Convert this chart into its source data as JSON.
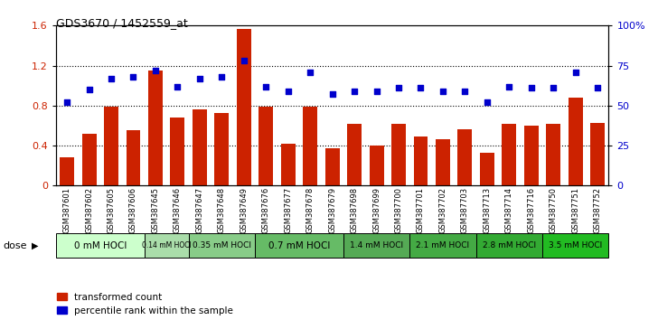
{
  "title": "GDS3670 / 1452559_at",
  "samples": [
    "GSM387601",
    "GSM387602",
    "GSM387605",
    "GSM387606",
    "GSM387645",
    "GSM387646",
    "GSM387647",
    "GSM387648",
    "GSM387649",
    "GSM387676",
    "GSM387677",
    "GSM387678",
    "GSM387679",
    "GSM387698",
    "GSM387699",
    "GSM387700",
    "GSM387701",
    "GSM387702",
    "GSM387703",
    "GSM387713",
    "GSM387714",
    "GSM387716",
    "GSM387750",
    "GSM387751",
    "GSM387752"
  ],
  "bar_values": [
    0.28,
    0.52,
    0.79,
    0.55,
    1.15,
    0.68,
    0.76,
    0.73,
    1.57,
    0.79,
    0.42,
    0.79,
    0.37,
    0.62,
    0.4,
    0.62,
    0.49,
    0.46,
    0.56,
    0.33,
    0.62,
    0.6,
    0.62,
    0.88,
    0.63
  ],
  "dot_values_pct": [
    52,
    60,
    67,
    68,
    72,
    62,
    67,
    68,
    78,
    62,
    59,
    71,
    57,
    59,
    59,
    61,
    61,
    59,
    59,
    52,
    62,
    61,
    61,
    71,
    61
  ],
  "bar_color": "#CC2200",
  "dot_color": "#0000CC",
  "ylim_left": [
    0,
    1.6
  ],
  "ylim_right": [
    0,
    100
  ],
  "yticks_left": [
    0,
    0.4,
    0.8,
    1.2,
    1.6
  ],
  "ytick_labels_left": [
    "0",
    "0.4",
    "0.8",
    "1.2",
    "1.6"
  ],
  "yticks_right": [
    0,
    25,
    50,
    75,
    100
  ],
  "ytick_labels_right": [
    "0",
    "25",
    "50",
    "75",
    "100%"
  ],
  "dose_groups": [
    {
      "label": "0 mM HOCl",
      "start": 0,
      "end": 4,
      "color": "#ccffcc"
    },
    {
      "label": "0.14 mM HOCl",
      "start": 4,
      "end": 6,
      "color": "#aaddaa"
    },
    {
      "label": "0.35 mM HOCl",
      "start": 6,
      "end": 9,
      "color": "#88cc88"
    },
    {
      "label": "0.7 mM HOCl",
      "start": 9,
      "end": 13,
      "color": "#66bb66"
    },
    {
      "label": "1.4 mM HOCl",
      "start": 13,
      "end": 16,
      "color": "#55aa55"
    },
    {
      "label": "2.1 mM HOCl",
      "start": 16,
      "end": 19,
      "color": "#44aa44"
    },
    {
      "label": "2.8 mM HOCl",
      "start": 19,
      "end": 22,
      "color": "#33aa33"
    },
    {
      "label": "3.5 mM HOCl",
      "start": 22,
      "end": 25,
      "color": "#22bb22"
    }
  ],
  "background_color": "#ffffff",
  "dose_label": "dose"
}
